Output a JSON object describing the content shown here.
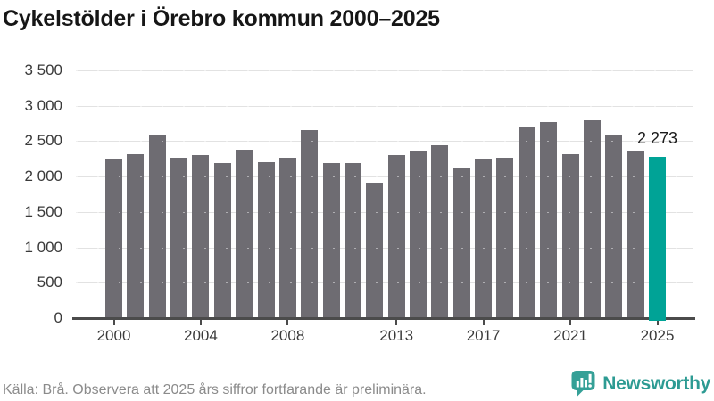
{
  "header": {
    "title": "Cykelstölder i Örebro kommun 2000–2025"
  },
  "chart_data": {
    "type": "bar",
    "title": "Cykelstölder i Örebro kommun 2000–2025",
    "categories": [
      "2000",
      "2001",
      "2002",
      "2003",
      "2004",
      "2005",
      "2006",
      "2007",
      "2008",
      "2009",
      "2010",
      "2011",
      "2012",
      "2013",
      "2014",
      "2015",
      "2016",
      "2017",
      "2018",
      "2019",
      "2020",
      "2021",
      "2022",
      "2023",
      "2024",
      "2025"
    ],
    "values": [
      2255,
      2315,
      2580,
      2270,
      2305,
      2195,
      2375,
      2205,
      2265,
      2655,
      2190,
      2195,
      1915,
      2305,
      2365,
      2440,
      2120,
      2250,
      2265,
      2690,
      2765,
      2320,
      2800,
      2590,
      2365,
      2273
    ],
    "highlight": {
      "index": 25,
      "label": "2 273",
      "color": "#00A396"
    },
    "bar_color": "#6E6C72",
    "ylim": [
      0,
      3500
    ],
    "ytick_step": 500,
    "ytick_labels": [
      "0",
      "500",
      "1 000",
      "1 500",
      "2 000",
      "2 500",
      "3 000",
      "3 500"
    ],
    "xtick_years": [
      "2000",
      "2004",
      "2008",
      "2013",
      "2017",
      "2021",
      "2025"
    ],
    "grid": "horizontal",
    "legend": "none"
  },
  "footer": {
    "source": "Källa: Brå. Observera att 2025 års siffror fortfarande är preliminära.",
    "brand": {
      "name": "Newsworthy"
    }
  }
}
